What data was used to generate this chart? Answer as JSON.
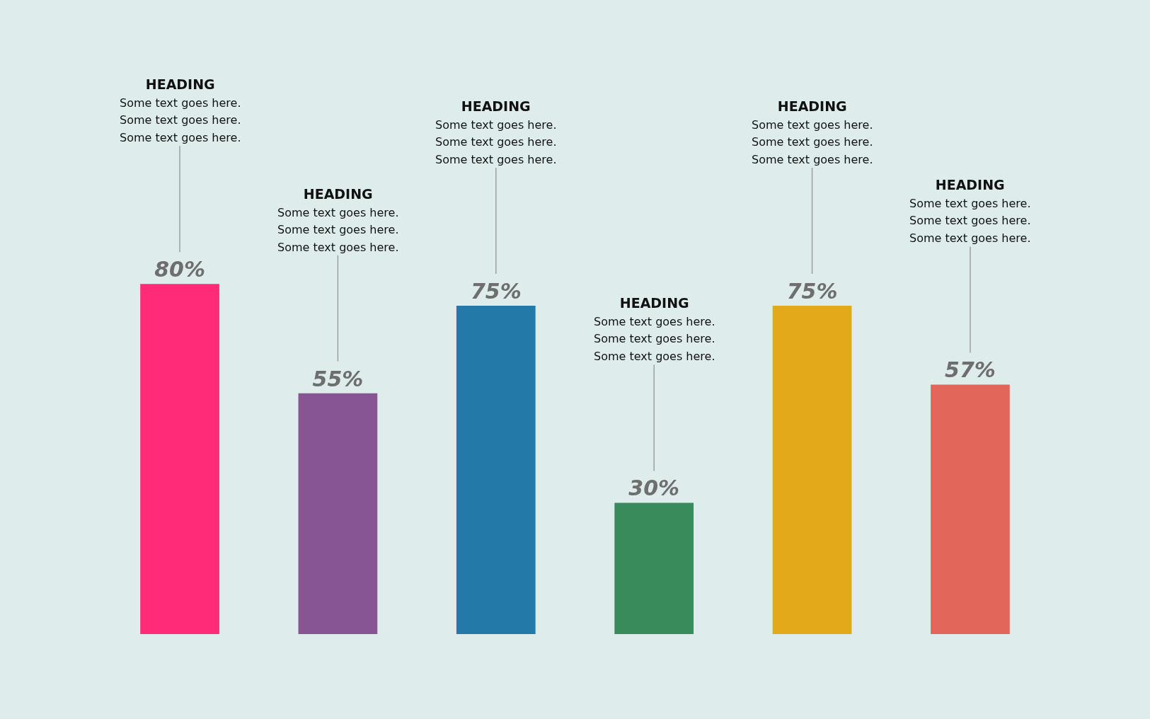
{
  "chart_data": {
    "type": "bar",
    "categories": [
      null,
      null,
      null,
      null,
      null,
      null
    ],
    "values": [
      80,
      55,
      75,
      30,
      75,
      57
    ],
    "colors": [
      "#ff2a78",
      "#865592",
      "#2379a8",
      "#3a8b5c",
      "#e2a91b",
      "#e2665a"
    ],
    "value_labels": [
      "80%",
      "55%",
      "75%",
      "30%",
      "75%",
      "57%"
    ],
    "annotations": [
      "HEADING\nSome text goes here.\nSome text goes here.\nSome text goes here.",
      "HEADING\nSome text goes here.\nSome text goes here.\nSome text goes here.",
      "HEADING\nSome text goes here.\nSome text goes here.\nSome text goes here.",
      "HEADING\nSome text goes here.\nSome text goes here.\nSome text goes here.",
      "HEADING\nSome text goes here.\nSome text goes here.\nSome text goes here.",
      "HEADING\nSome text goes here.\nSome text goes here.\nSome text goes here."
    ]
  }
}
